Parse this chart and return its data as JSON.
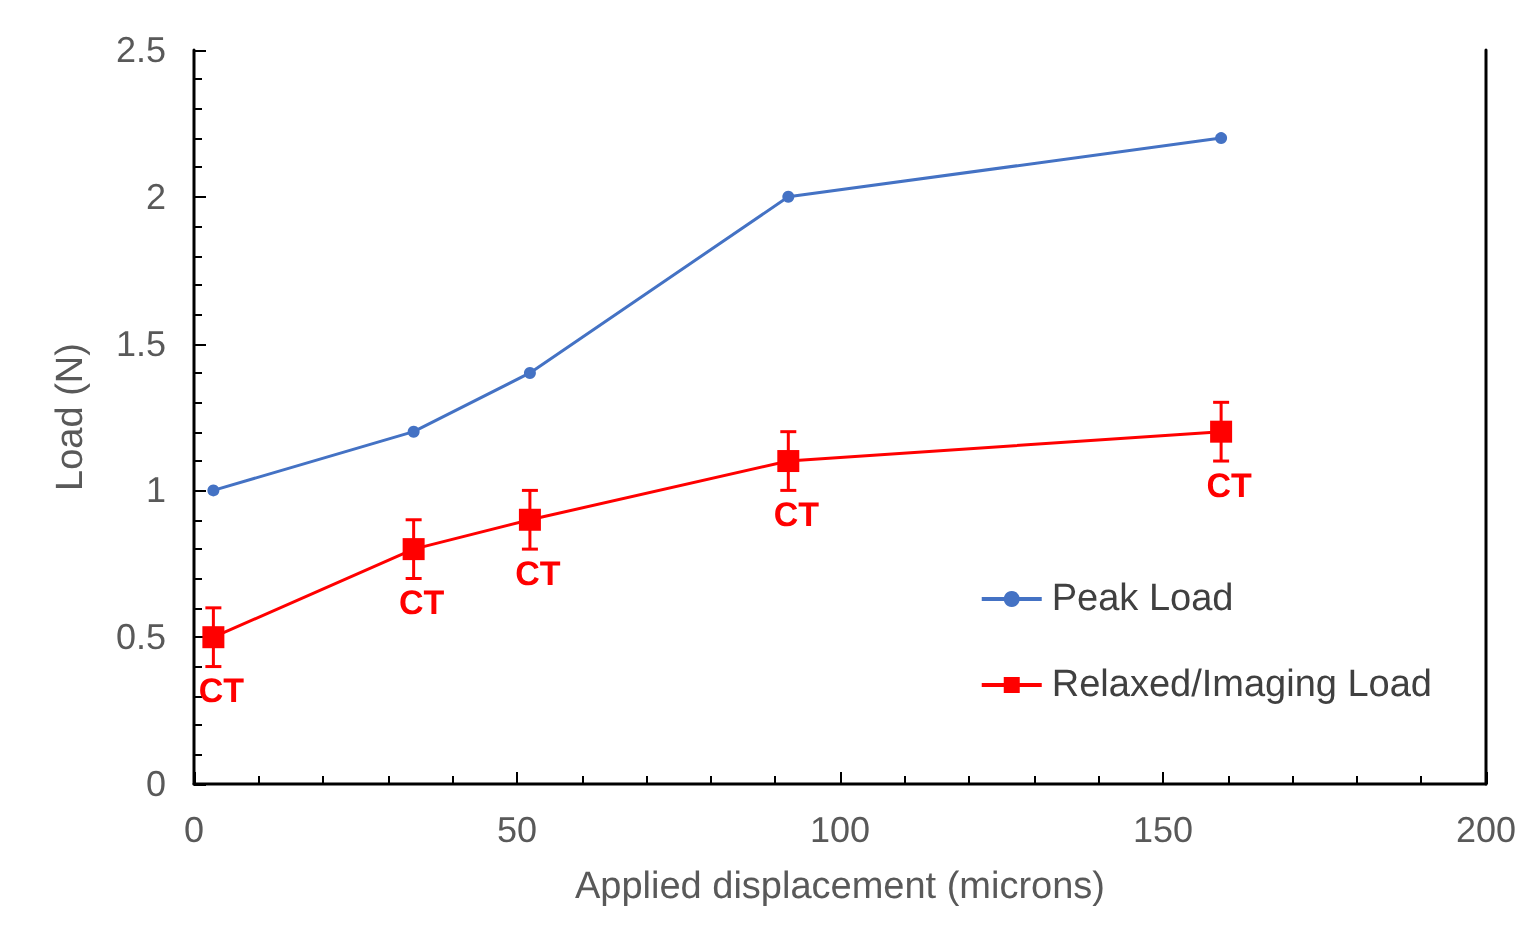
{
  "chart_data": {
    "type": "line",
    "xlabel": "Applied displacement (microns)",
    "ylabel": "Load (N)",
    "xlim": [
      0,
      200
    ],
    "xticks": [
      0,
      50,
      100,
      150,
      200
    ],
    "ylim": [
      0,
      2.5
    ],
    "yticks": [
      0,
      0.5,
      1,
      1.5,
      2,
      2.5
    ],
    "x": [
      3,
      34,
      52,
      92,
      159
    ],
    "series": [
      {
        "name": "Peak Load",
        "color": "#4472c4",
        "marker": "circle",
        "values": [
          1,
          1.2,
          1.4,
          2,
          2.2
        ]
      },
      {
        "name": "Relaxed/Imaging Load",
        "color": "#ff0000",
        "marker": "square",
        "values": [
          0.5,
          0.8,
          0.9,
          1.1,
          1.2
        ],
        "errors": [
          0.1,
          0.1,
          0.1,
          0.1,
          0.1
        ]
      }
    ],
    "annotations": [
      {
        "text": "CT",
        "x": 3,
        "y": 0.5
      },
      {
        "text": "CT",
        "x": 34,
        "y": 0.8
      },
      {
        "text": "CT",
        "x": 52,
        "y": 0.9
      },
      {
        "text": "CT",
        "x": 92,
        "y": 1.1
      },
      {
        "text": "CT",
        "x": 159,
        "y": 1.2
      }
    ],
    "legend": "right",
    "grid": false,
    "line_style": "solid"
  }
}
